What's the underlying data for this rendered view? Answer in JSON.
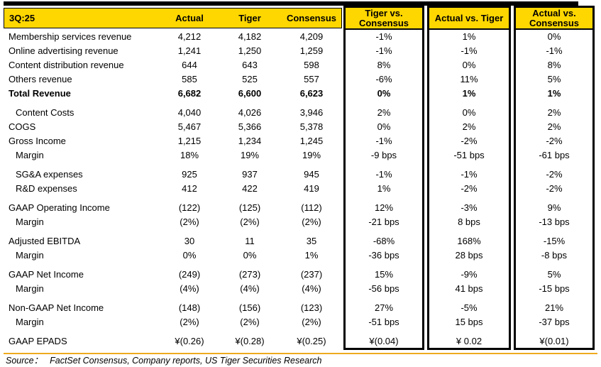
{
  "colors": {
    "header_yellow": "#FFD700",
    "rule_gold": "#EDAA1E",
    "border_black": "#000000"
  },
  "table": {
    "title": "3Q:25",
    "value_columns": [
      "Actual",
      "Tiger",
      "Consensus"
    ],
    "diff_columns": [
      "Tiger vs. Consensus",
      "Actual vs. Tiger",
      "Actual vs. Consensus"
    ],
    "sections": [
      {
        "rows": [
          {
            "label": "Membership services revenue",
            "values": [
              "4,212",
              "4,182",
              "4,209",
              "-1%",
              "1%",
              "0%"
            ]
          },
          {
            "label": "Online advertising revenue",
            "values": [
              "1,241",
              "1,250",
              "1,259",
              "-1%",
              "-1%",
              "-1%"
            ]
          },
          {
            "label": "Content distribution revenue",
            "values": [
              "644",
              "643",
              "598",
              "8%",
              "0%",
              "8%"
            ]
          },
          {
            "label": "Others revenue",
            "values": [
              "585",
              "525",
              "557",
              "-6%",
              "11%",
              "5%"
            ]
          },
          {
            "label": "Total Revenue",
            "bold": true,
            "values": [
              "6,682",
              "6,600",
              "6,623",
              "0%",
              "1%",
              "1%"
            ]
          }
        ]
      },
      {
        "rows": [
          {
            "label": "Content Costs",
            "indent": true,
            "values": [
              "4,040",
              "4,026",
              "3,946",
              "2%",
              "0%",
              "2%"
            ]
          },
          {
            "label": "COGS",
            "values": [
              "5,467",
              "5,366",
              "5,378",
              "0%",
              "2%",
              "2%"
            ]
          },
          {
            "label": "Gross Income",
            "values": [
              "1,215",
              "1,234",
              "1,245",
              "-1%",
              "-2%",
              "-2%"
            ]
          },
          {
            "label": "Margin",
            "indent": true,
            "values": [
              "18%",
              "19%",
              "19%",
              "-9 bps",
              "-51 bps",
              "-61 bps"
            ]
          }
        ]
      },
      {
        "rows": [
          {
            "label": "SG&A expenses",
            "indent": true,
            "values": [
              "925",
              "937",
              "945",
              "-1%",
              "-1%",
              "-2%"
            ]
          },
          {
            "label": "R&D expenses",
            "indent": true,
            "values": [
              "412",
              "422",
              "419",
              "1%",
              "-2%",
              "-2%"
            ]
          }
        ]
      },
      {
        "rows": [
          {
            "label": "GAAP Operating Income",
            "values": [
              "(122)",
              "(125)",
              "(112)",
              "12%",
              "-3%",
              "9%"
            ]
          },
          {
            "label": "Margin",
            "indent": true,
            "values": [
              "(2%)",
              "(2%)",
              "(2%)",
              "-21 bps",
              "8 bps",
              "-13 bps"
            ]
          }
        ]
      },
      {
        "rows": [
          {
            "label": "Adjusted EBITDA",
            "values": [
              "30",
              "11",
              "35",
              "-68%",
              "168%",
              "-15%"
            ]
          },
          {
            "label": "Margin",
            "indent": true,
            "values": [
              "0%",
              "0%",
              "1%",
              "-36 bps",
              "28 bps",
              "-8 bps"
            ]
          }
        ]
      },
      {
        "rows": [
          {
            "label": "GAAP Net Income",
            "values": [
              "(249)",
              "(273)",
              "(237)",
              "15%",
              "-9%",
              "5%"
            ]
          },
          {
            "label": "Margin",
            "indent": true,
            "values": [
              "(4%)",
              "(4%)",
              "(4%)",
              "-56 bps",
              "41 bps",
              "-15 bps"
            ]
          }
        ]
      },
      {
        "rows": [
          {
            "label": "Non-GAAP Net Income",
            "values": [
              "(148)",
              "(156)",
              "(123)",
              "27%",
              "-5%",
              "21%"
            ]
          },
          {
            "label": "Margin",
            "indent": true,
            "values": [
              "(2%)",
              "(2%)",
              "(2%)",
              "-51 bps",
              "15 bps",
              "-37 bps"
            ]
          }
        ]
      },
      {
        "rows": [
          {
            "label": "GAAP EPADS",
            "values": [
              "¥(0.26)",
              "¥(0.28)",
              "¥(0.25)",
              "¥(0.04)",
              "¥ 0.02",
              "¥(0.01)"
            ]
          }
        ]
      }
    ]
  },
  "footer": {
    "source_label": "Source：",
    "source_text": "FactSet Consensus, Company reports, US Tiger Securities Research"
  }
}
